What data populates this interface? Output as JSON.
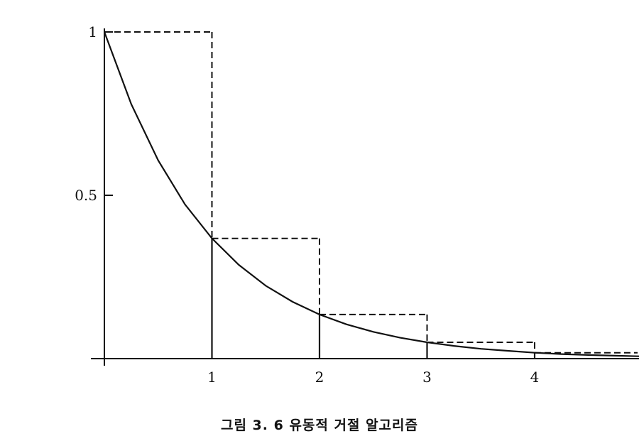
{
  "caption": "그림 3. 6  유동적 거절 알고리즘",
  "chart_data": {
    "type": "line",
    "title": "",
    "xlabel": "",
    "ylabel": "",
    "xlim": [
      0,
      5
    ],
    "ylim": [
      0,
      1
    ],
    "x_ticks": [
      {
        "value": 1,
        "label": "1"
      },
      {
        "value": 2,
        "label": "2"
      },
      {
        "value": 3,
        "label": "3"
      },
      {
        "value": 4,
        "label": "4"
      }
    ],
    "y_ticks": [
      {
        "value": 0.5,
        "label": "0.5"
      },
      {
        "value": 1,
        "label": "1"
      }
    ],
    "grid": false,
    "curve": {
      "x": [
        0,
        0.25,
        0.5,
        0.75,
        1,
        1.25,
        1.5,
        1.75,
        2,
        2.25,
        2.5,
        2.75,
        3,
        3.25,
        3.5,
        3.75,
        4,
        4.25,
        4.5,
        4.75,
        5
      ],
      "y": [
        1,
        0.779,
        0.607,
        0.472,
        0.368,
        0.287,
        0.223,
        0.174,
        0.135,
        0.105,
        0.082,
        0.064,
        0.05,
        0.039,
        0.03,
        0.024,
        0.018,
        0.014,
        0.011,
        0.009,
        0.007
      ]
    },
    "envelope_steps": [
      {
        "x0": 0,
        "x1": 1,
        "y": 1
      },
      {
        "x0": 1,
        "x1": 2,
        "y": 0.368
      },
      {
        "x0": 2,
        "x1": 3,
        "y": 0.135
      },
      {
        "x0": 3,
        "x1": 4,
        "y": 0.05
      },
      {
        "x0": 4,
        "x1": 5,
        "y": 0.018
      }
    ],
    "vertical_lines": [
      {
        "x": 1,
        "y": 0.368
      },
      {
        "x": 2,
        "y": 0.135
      },
      {
        "x": 3,
        "y": 0.05
      },
      {
        "x": 4,
        "y": 0.018
      }
    ]
  }
}
